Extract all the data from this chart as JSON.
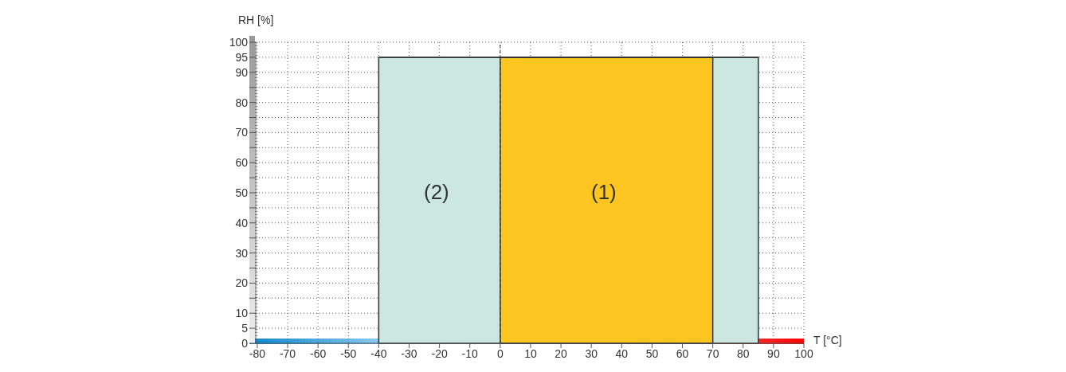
{
  "chart_data": {
    "type": "area",
    "xlabel": "T [°C]",
    "ylabel": "RH [%]",
    "series": [
      {
        "x": [
          -40,
          85
        ],
        "values": [
          95,
          95
        ],
        "color": "#cce7df"
      },
      {
        "x": [
          0,
          70
        ],
        "values": [
          95,
          95
        ],
        "color": "#fcc520"
      }
    ],
    "annotations": [
      "(2)",
      "(1)"
    ],
    "ref_lines": [
      {
        "axis": "x",
        "value": 0,
        "line_style": "dashed"
      }
    ],
    "xlim": [
      -80.5,
      100
    ],
    "xticks": [
      -80,
      -70,
      -60,
      -50,
      -40,
      -30,
      -20,
      -10,
      0,
      10,
      20,
      30,
      40,
      50,
      60,
      70,
      80,
      90,
      100
    ],
    "ylim": [
      0,
      100
    ],
    "yticks": [
      0,
      5,
      10,
      {
        "value": 15,
        "label": null
      },
      20,
      {
        "value": 25,
        "label": null
      },
      30,
      {
        "value": 35,
        "label": null
      },
      40,
      {
        "value": 45,
        "label": null
      },
      50,
      {
        "value": 55,
        "label": null
      },
      60,
      {
        "value": 65,
        "label": null
      },
      70,
      {
        "value": 75,
        "label": null
      },
      80,
      {
        "value": 85,
        "label": null
      },
      90,
      95,
      100
    ],
    "grid": true,
    "legend": false
  }
}
